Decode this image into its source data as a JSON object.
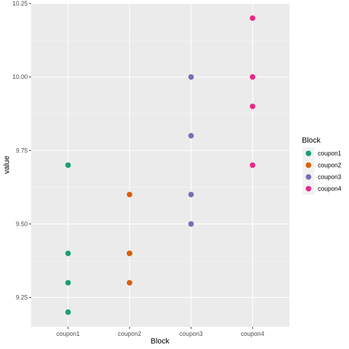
{
  "chart_data": {
    "type": "scatter",
    "xlabel": "Block",
    "ylabel": "value",
    "categories": [
      "coupon1",
      "coupon2",
      "coupon3",
      "coupon4"
    ],
    "ylim": [
      9.15,
      10.25
    ],
    "y_ticks": [
      "9.25",
      "9.50",
      "9.75",
      "10.00",
      "10.25"
    ],
    "grid": true,
    "legend": {
      "title": "Block",
      "position": "right",
      "entries": [
        "coupon1",
        "coupon2",
        "coupon3",
        "coupon4"
      ]
    },
    "series": [
      {
        "name": "coupon1",
        "color": "#1B9E77",
        "x": "coupon1",
        "values": [
          9.7,
          9.4,
          9.3,
          9.2
        ]
      },
      {
        "name": "coupon2",
        "color": "#D95F02",
        "x": "coupon2",
        "values": [
          9.6,
          9.4,
          9.4,
          9.3
        ]
      },
      {
        "name": "coupon3",
        "color": "#7570B3",
        "x": "coupon3",
        "values": [
          10.0,
          9.8,
          9.6,
          9.5
        ]
      },
      {
        "name": "coupon4",
        "color": "#E7298A",
        "x": "coupon4",
        "values": [
          10.2,
          10.0,
          9.9,
          9.7
        ]
      }
    ]
  }
}
